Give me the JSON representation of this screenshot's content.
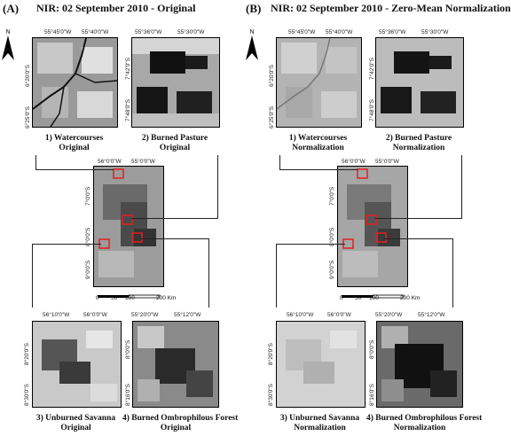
{
  "panels": [
    {
      "id": "A",
      "title": "(A)",
      "heading": "NIR: 02 September 2010 - Original",
      "captions": {
        "tl": [
          "1) Watercourses",
          "Original"
        ],
        "tr": [
          "2) Burned Pasture",
          "Original"
        ],
        "bl": [
          "3) Unburned Savanna",
          "Original"
        ],
        "br": [
          "4) Burned Ombrophilous Forest",
          "Original"
        ]
      }
    },
    {
      "id": "B",
      "title": "(B)",
      "heading": "NIR: 02 September 2010 - Zero-Mean Normalization",
      "captions": {
        "tl": [
          "1) Watercourses",
          "Normalization"
        ],
        "tr": [
          "2) Burned Pasture",
          "Normalization"
        ],
        "bl": [
          "3) Unburned Savanna",
          "Normalization"
        ],
        "br": [
          "4) Burned Ombrophilous Forest",
          "Normalization"
        ]
      }
    }
  ],
  "ticks": {
    "tl_top": [
      "55°45'0\"W",
      "55°40'0\"W"
    ],
    "tl_left": [
      "6°20'0\"S",
      "6°25'0\"S"
    ],
    "tr_top": [
      "55°36'0\"W",
      "55°30'0\"W"
    ],
    "tr_left": [
      "7°42'0\"S",
      "7°48'0\"S"
    ],
    "c_top": [
      "56°0'0\"W",
      "55°0'0\"W"
    ],
    "c_left": [
      "7°0'0\"S",
      "8°0'0\"S",
      "9°0'0\"S"
    ],
    "bl_top": [
      "56°10'0\"W",
      "56°0'0\"W"
    ],
    "bl_left": [
      "8°20'0\"S",
      "8°30'0\"S"
    ],
    "br_top": [
      "55°20'0\"W",
      "55°12'0\"W"
    ],
    "br_left": [
      "8°0'0\"S",
      "8°16'0\"S"
    ]
  },
  "scalebar": {
    "labels": [
      "0",
      "50",
      "100",
      "200 Km"
    ]
  },
  "north": "N",
  "colors": {
    "box": "#e02020",
    "burn": "#0d0d0d",
    "bg": "#ffffff"
  }
}
